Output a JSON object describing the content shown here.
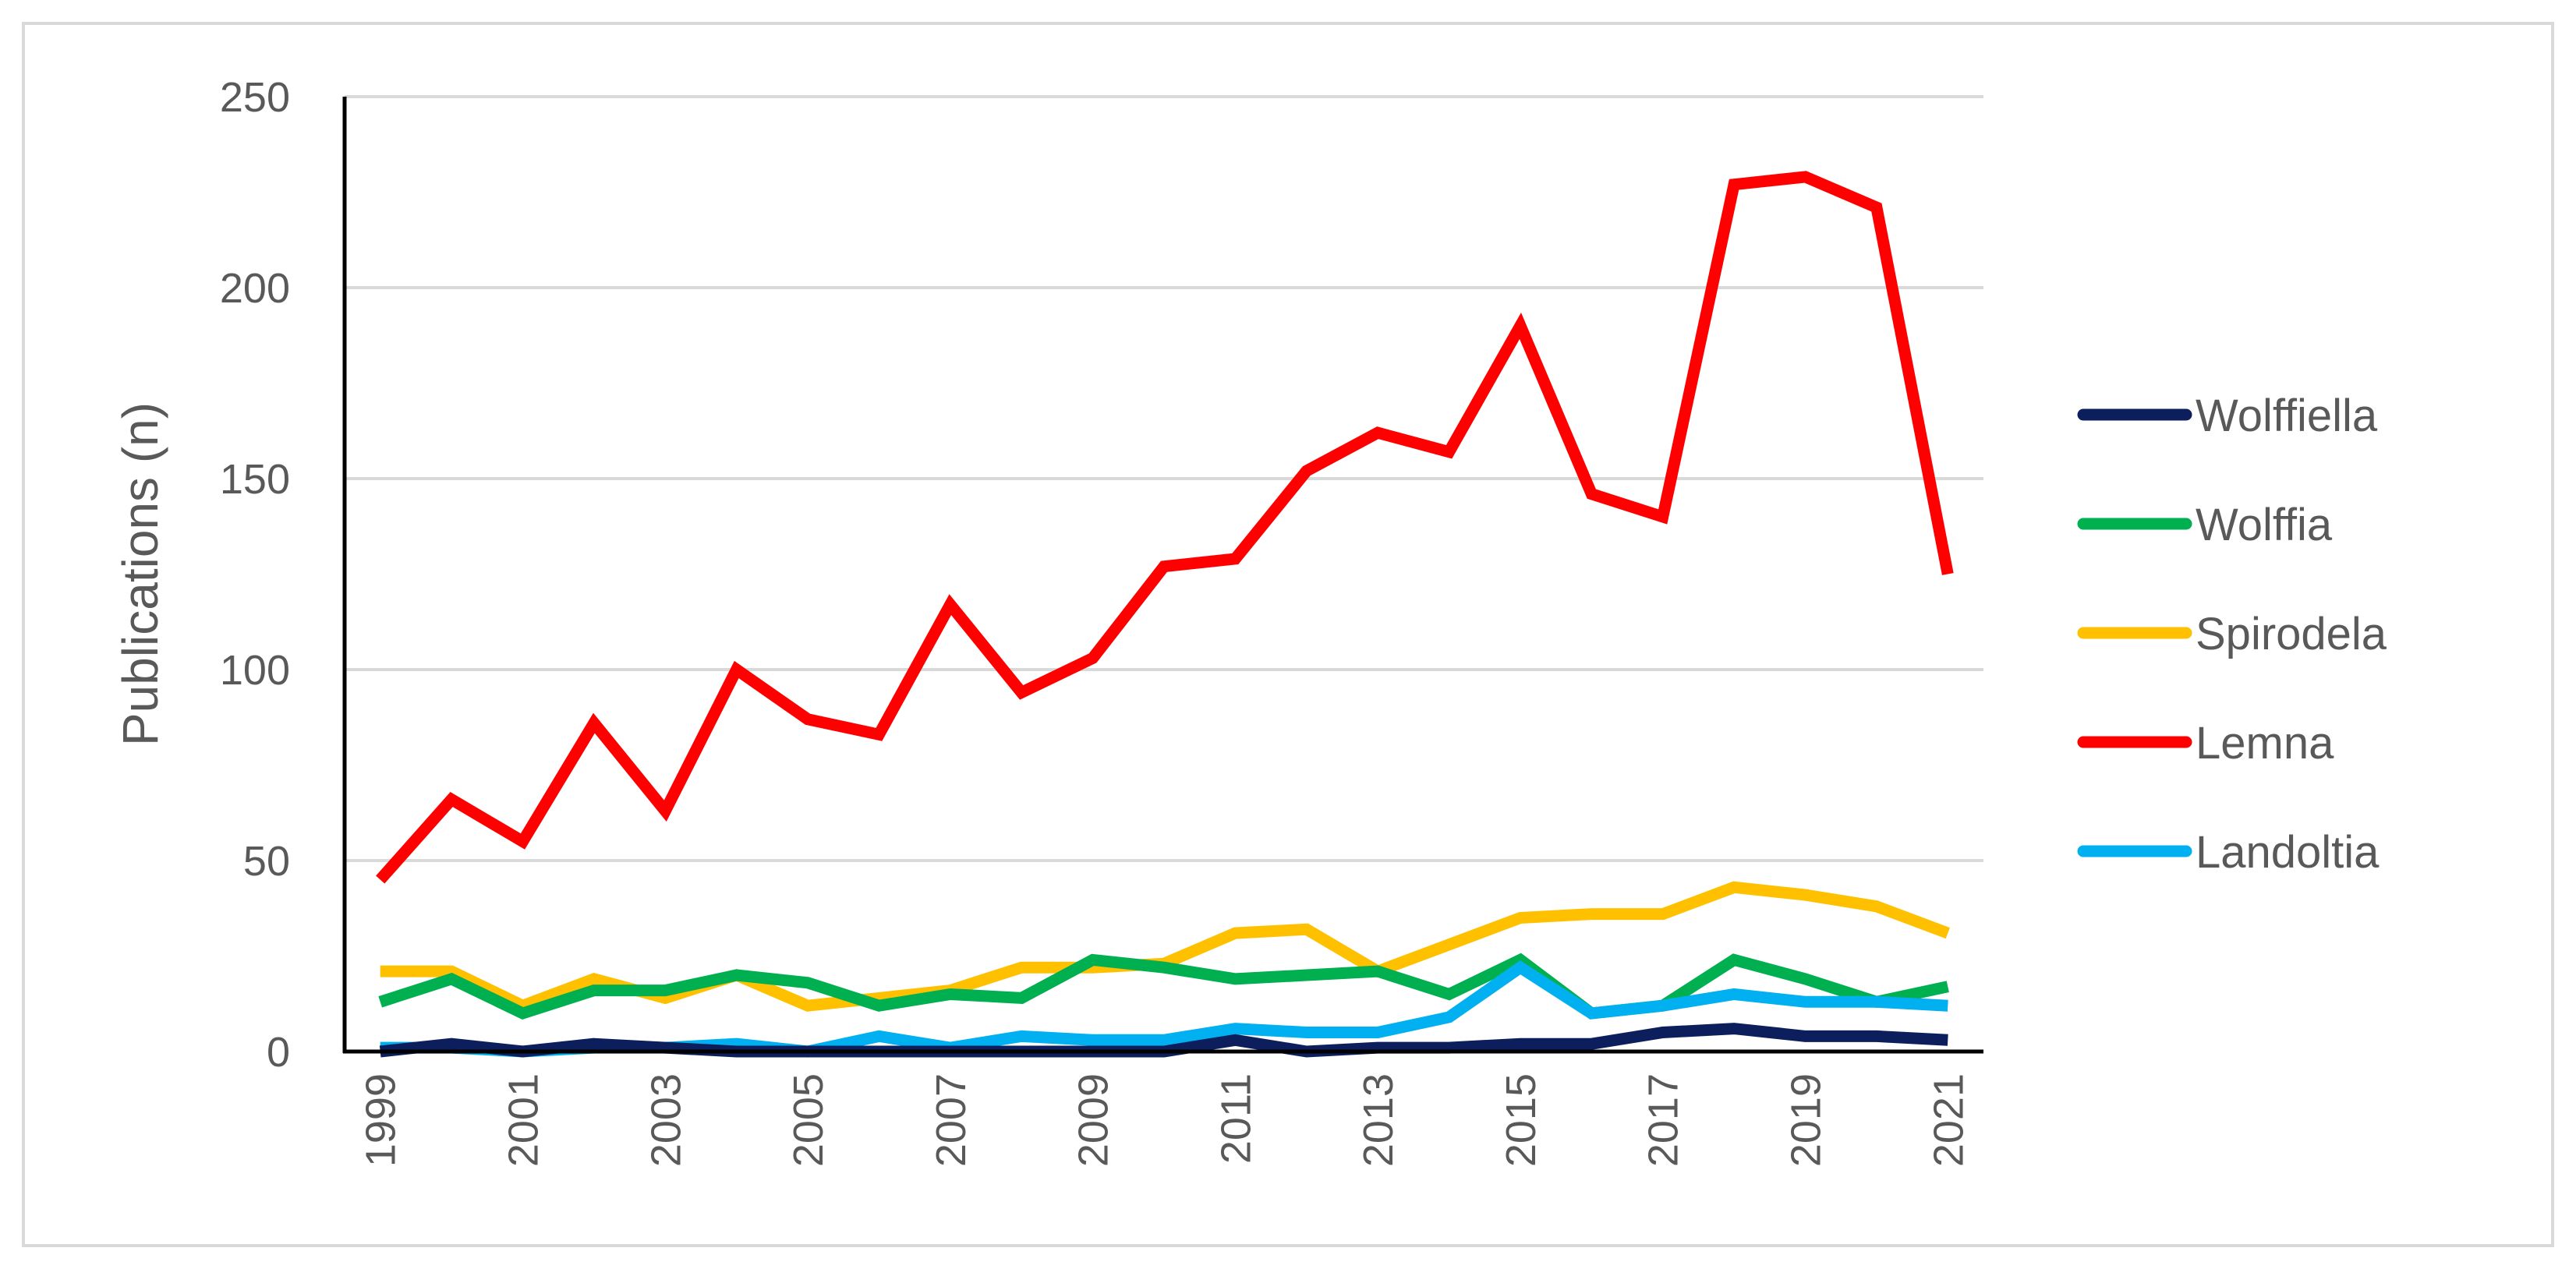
{
  "chart_data": {
    "type": "line",
    "title": "",
    "xlabel": "",
    "ylabel": "Publications (n)",
    "ylim": [
      0,
      250
    ],
    "yticks": [
      "0",
      "50",
      "100",
      "150",
      "200",
      "250"
    ],
    "grid": true,
    "legend_position": "right",
    "x": [
      "1999",
      "2000",
      "2001",
      "2002",
      "2003",
      "2004",
      "2005",
      "2006",
      "2007",
      "2008",
      "2009",
      "2010",
      "2011",
      "2012",
      "2013",
      "2014",
      "2015",
      "2016",
      "2017",
      "2018",
      "2019",
      "2020",
      "2021"
    ],
    "x_tick_labels": [
      "1999",
      "2001",
      "2003",
      "2005",
      "2007",
      "2009",
      "2011",
      "2013",
      "2015",
      "2017",
      "2019",
      "2021"
    ],
    "series": [
      {
        "name": "Wolffiella",
        "color": "#0c1f5c",
        "values": [
          0,
          2,
          0,
          2,
          1,
          0,
          0,
          0,
          0,
          0,
          0,
          0,
          3,
          0,
          1,
          1,
          2,
          2,
          5,
          6,
          4,
          4,
          3
        ]
      },
      {
        "name": "Wolffia",
        "color": "#00b050",
        "values": [
          13,
          19,
          10,
          16,
          16,
          20,
          18,
          12,
          15,
          14,
          24,
          22,
          19,
          20,
          21,
          15,
          24,
          10,
          12,
          24,
          19,
          13,
          17
        ]
      },
      {
        "name": "Spirodela",
        "color": "#ffc000",
        "values": [
          21,
          21,
          12,
          19,
          14,
          20,
          12,
          14,
          16,
          22,
          22,
          23,
          31,
          32,
          21,
          28,
          35,
          36,
          36,
          43,
          41,
          38,
          31
        ]
      },
      {
        "name": "Lemna",
        "color": "#ff0000",
        "values": [
          45,
          66,
          55,
          86,
          63,
          100,
          87,
          83,
          117,
          94,
          103,
          127,
          129,
          152,
          162,
          157,
          190,
          146,
          140,
          227,
          229,
          221,
          125
        ]
      },
      {
        "name": "Landoltia",
        "color": "#00b0f0",
        "values": [
          1,
          1,
          0,
          1,
          1,
          2,
          0,
          4,
          1,
          4,
          3,
          3,
          6,
          5,
          5,
          9,
          22,
          10,
          12,
          15,
          13,
          13,
          12
        ]
      }
    ],
    "draw_order": [
      "Spirodela",
      "Wolffia",
      "Landoltia",
      "Wolffiella",
      "Lemna"
    ]
  }
}
